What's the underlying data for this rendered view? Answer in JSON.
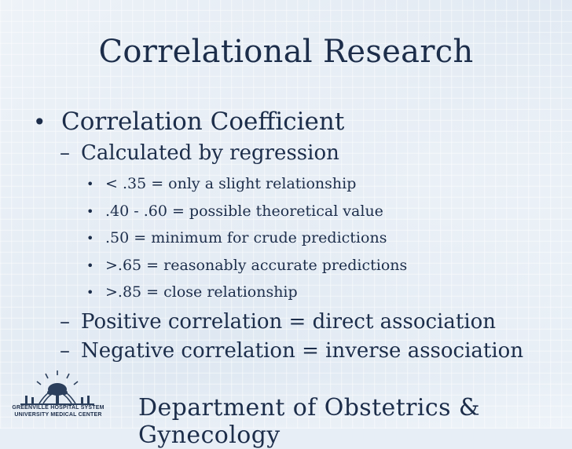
{
  "slide": {
    "title": "Correlational Research",
    "level1": "Correlation Coefficient",
    "calc_heading": "Calculated by regression",
    "items": [
      "< .35 = only a slight relationship",
      ".40 - .60 = possible theoretical value",
      ".50 = minimum for crude predictions",
      ">.65 = reasonably accurate predictions",
      ">.85 = close relationship"
    ],
    "positive": "Positive correlation = direct association",
    "negative": "Negative correlation = inverse association",
    "bullet_glyph": "•",
    "dash_glyph": "–"
  },
  "footer": {
    "logo_line1": "GREENVILLE HOSPITAL SYSTEM",
    "logo_line2": "UNIVERSITY MEDICAL CENTER",
    "department": "Department of Obstetrics & Gynecology"
  },
  "colors": {
    "text": "#1c2d4a",
    "background": "#e7eef6"
  },
  "icons": {
    "logo": "hospital-seal-logo-icon"
  }
}
